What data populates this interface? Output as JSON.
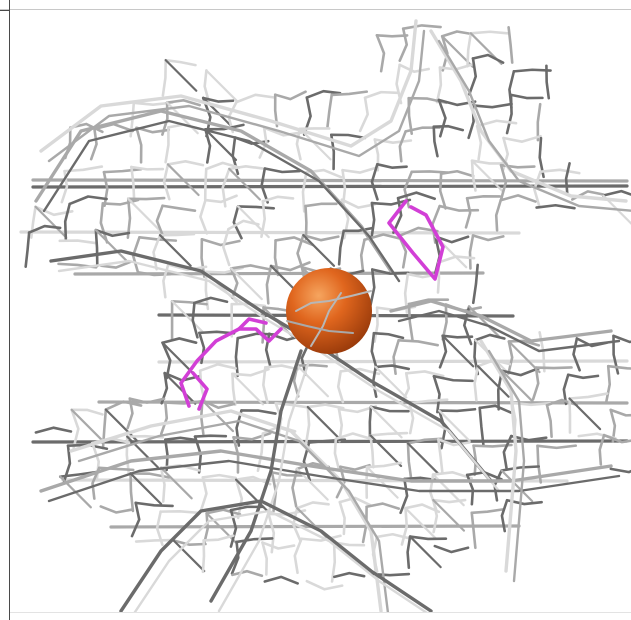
{
  "scene": {
    "kind": "molecular-density-render",
    "background_color": "#ffffff",
    "mesh_color_light": "#d9d9d9",
    "mesh_color_mid": "#a9a9a9",
    "mesh_color_dark": "#6b6b6b",
    "ligand_color": "#d23fd6",
    "sphere_color": "#e0661e",
    "sphere_highlight_color": "#f6a55f",
    "sphere_shadow_color": "#9c3c0b"
  }
}
